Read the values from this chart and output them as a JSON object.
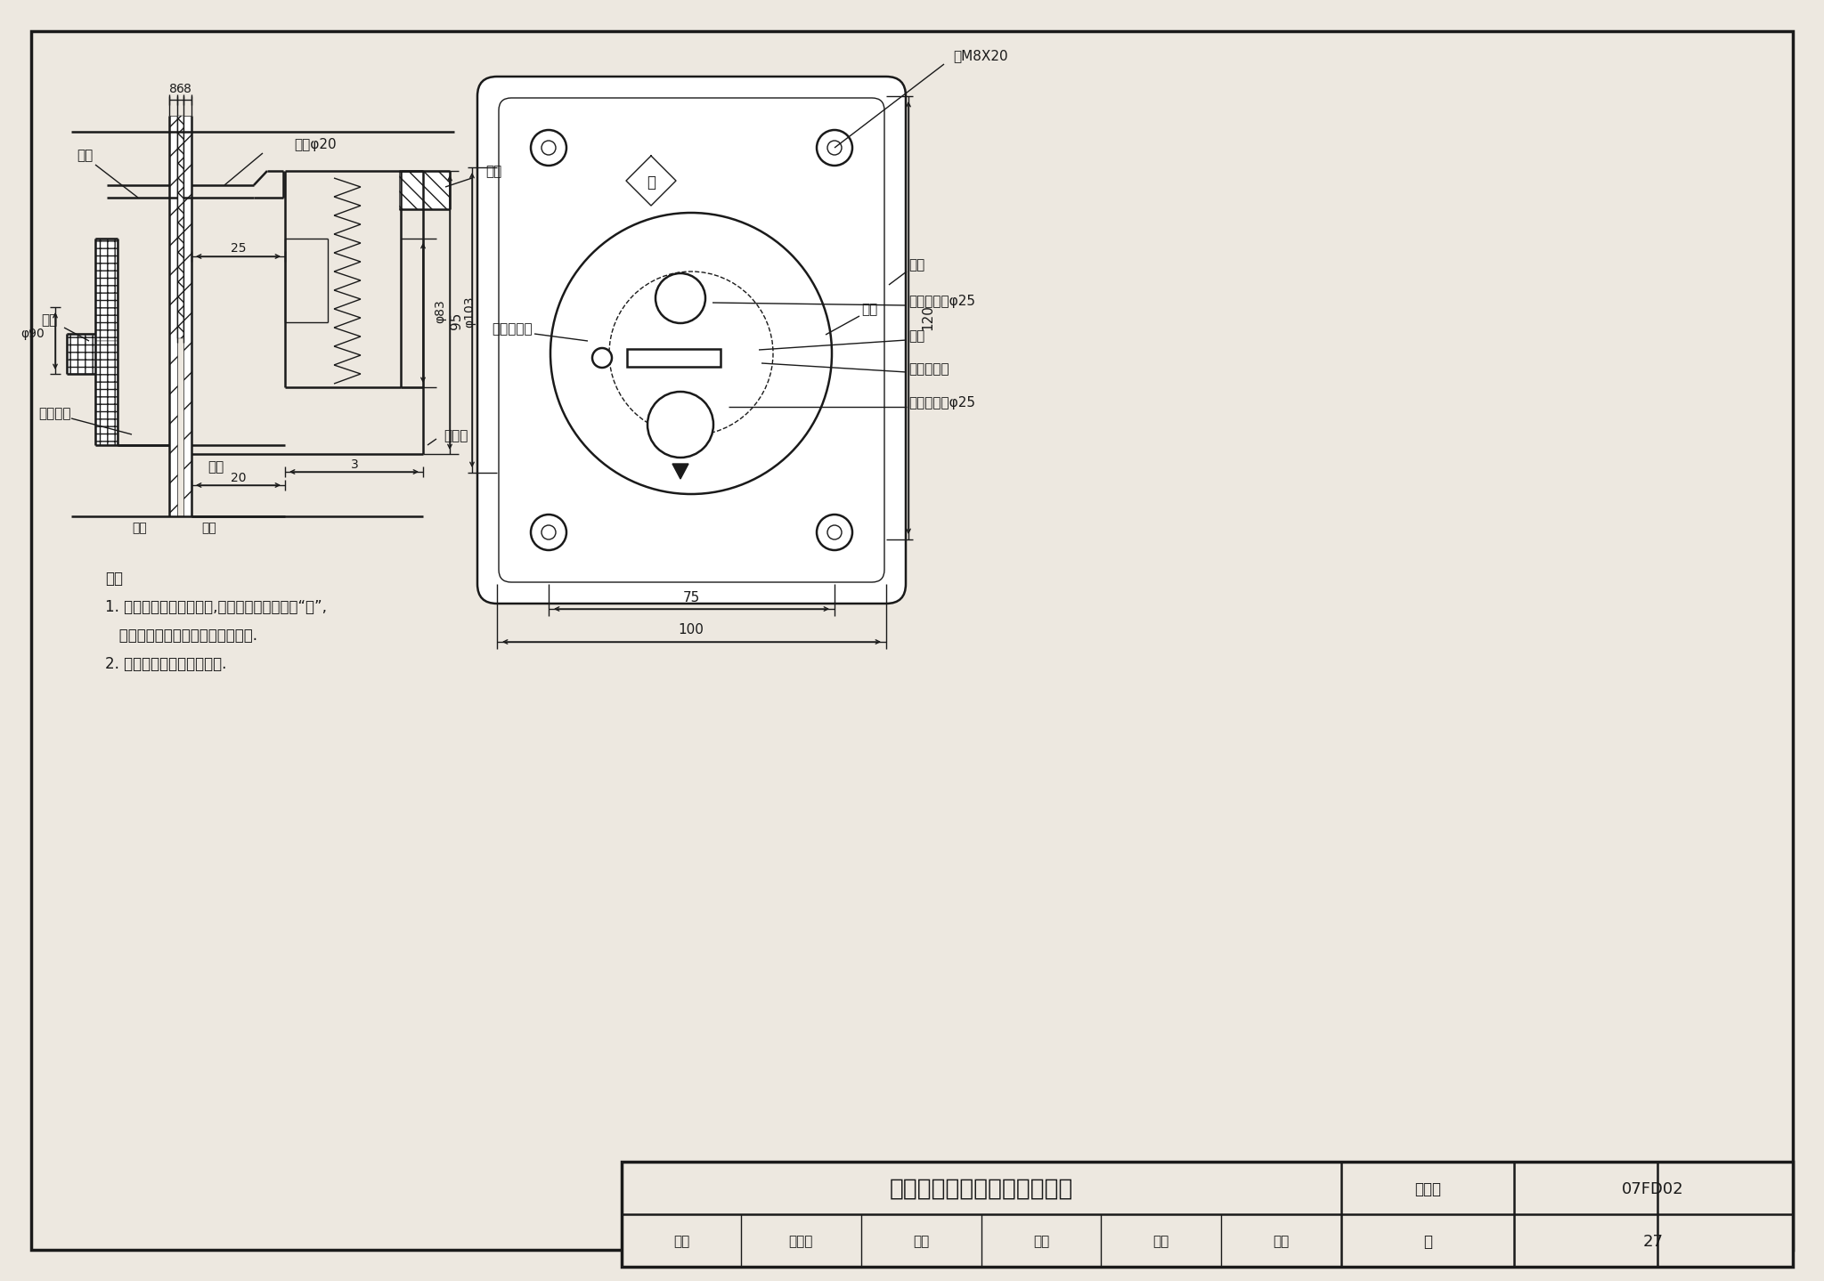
{
  "bg_color": "#ede8e0",
  "line_color": "#1a1a1a",
  "title": "防空地下室音响信号按鈕详图",
  "title_box_label": "图集号",
  "title_box_value": "07FD02",
  "page_label": "页",
  "page_value": "27",
  "note0": "注：",
  "note1": "1. 使用时顺时针拨动手柄,使图示简头对准上面“开”,",
  "note2": "   再单指伸入孔内即可触按呼唤按鈕.",
  "note3": "2. 产品出厂前应做防锈处理.",
  "label_zhuanpan": "转盘",
  "label_shoubing": "手柄",
  "label_zhuanpanliudong": "转盘留洞",
  "label_diaban": "底板",
  "label_hougaiban": "后盖板",
  "label_zhuanpan2": "转盘",
  "label_chenban": "贴板",
  "label_gangguan": "钉M8X20",
  "label_gangguan2": "钙管φ20",
  "label_mudie": "木坡",
  "label_chenban_r": "贴板",
  "label_chenban_kong": "贴板上留孔φ25",
  "label_shoubing_r": "手柄",
  "label_gangqiu1": "钙球定位坑",
  "label_gangqiu2": "钙球定位坑",
  "label_zhuanpan_kong": "转盘上留孔φ25",
  "label_zhuanpan_r": "转盘",
  "label_phi90": "φ90",
  "dim_8_6_8": [
    "8",
    "6",
    "8"
  ],
  "dim_25": "25",
  "dim_20": "20",
  "dim_3": "3",
  "dim_phi83": "φ83",
  "dim_phi103": "φ103",
  "dim_95": "95",
  "dim_120": "120",
  "dim_75": "75",
  "dim_100": "100",
  "kai_char": "开",
  "footer_shenhe": "审核",
  "footer_yangweixun": "杨维迅",
  "footer_jiaodui": "校对",
  "footer_luohao": "罗浩",
  "footer_sheji": "设计",
  "footer_xudi": "徐迪"
}
